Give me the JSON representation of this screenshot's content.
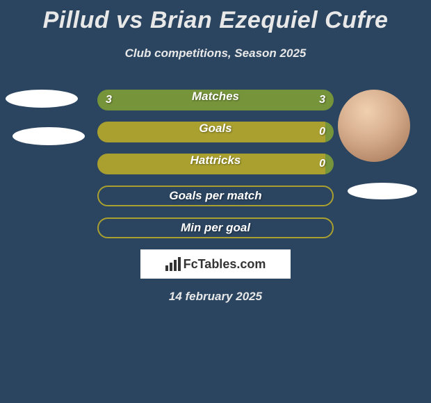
{
  "header": {
    "title": "Pillud vs Brian Ezequiel Cufre",
    "subtitle": "Club competitions, Season 2025"
  },
  "colors": {
    "background": "#2b4560",
    "bar_green": "#76943a",
    "bar_olive": "#a9a02f",
    "text_white": "#ffffff",
    "text_light": "#e8e8e8"
  },
  "stats": [
    {
      "label": "Matches",
      "left_value": "3",
      "right_value": "3",
      "type": "split",
      "left_color": "#76943a",
      "right_color": "#76943a",
      "left_width": 50,
      "right_width": 50
    },
    {
      "label": "Goals",
      "left_value": "",
      "right_value": "0",
      "type": "split",
      "left_color": "#a9a02f",
      "right_color": "#76943a",
      "left_width": 97,
      "right_width": 3
    },
    {
      "label": "Hattricks",
      "left_value": "",
      "right_value": "0",
      "type": "split",
      "left_color": "#a9a02f",
      "right_color": "#76943a",
      "left_width": 97,
      "right_width": 3
    },
    {
      "label": "Goals per match",
      "type": "outline",
      "border_color": "#a9a02f"
    },
    {
      "label": "Min per goal",
      "type": "outline",
      "border_color": "#a9a02f"
    }
  ],
  "footer": {
    "brand": "FcTables.com",
    "date": "14 february 2025"
  }
}
